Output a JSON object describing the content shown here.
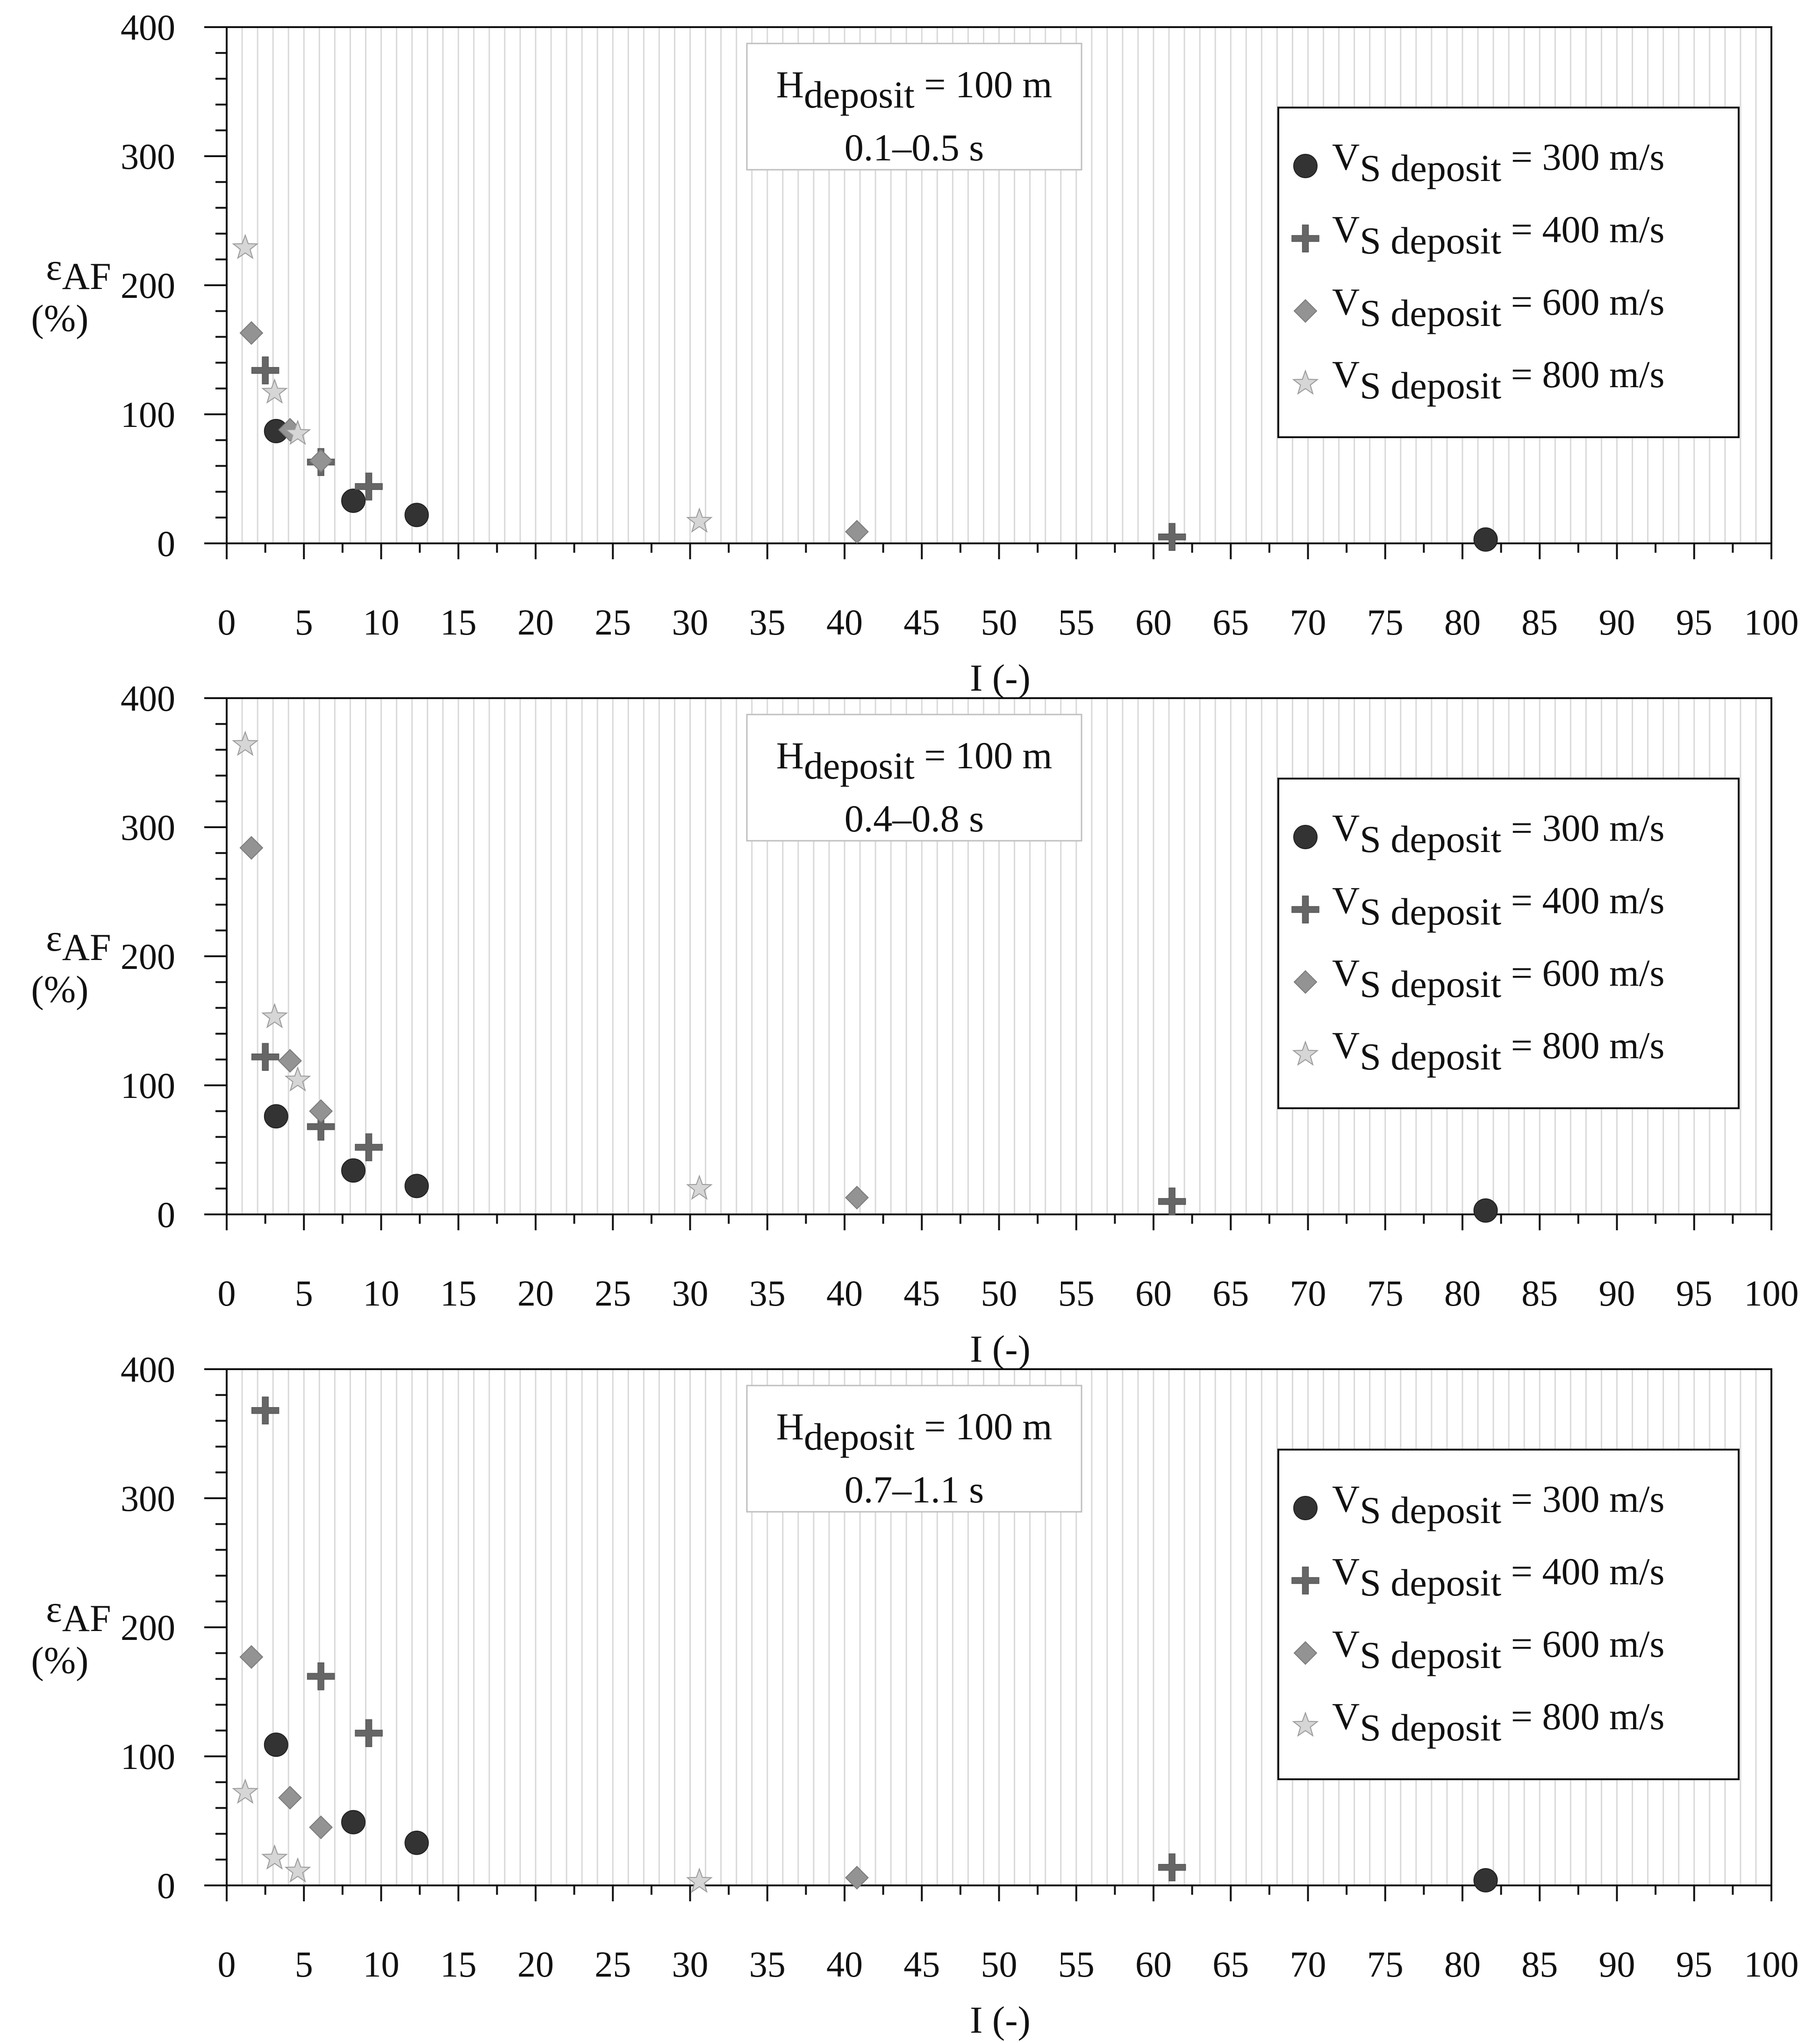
{
  "chart_data": [
    {
      "type": "scatter",
      "annotation": {
        "label_main": "H",
        "label_sub": "deposit",
        "label_value": " = 100 m",
        "period": "0.1–0.5 s"
      },
      "xlabel": "I (-)",
      "ylabel": {
        "symbol": "ε",
        "sub": "AF",
        "unit": "(%)"
      },
      "xlim": [
        0,
        100
      ],
      "ylim": [
        0,
        400
      ],
      "xticks": [
        "0",
        "5",
        "10",
        "15",
        "20",
        "25",
        "30",
        "35",
        "40",
        "45",
        "50",
        "55",
        "60",
        "65",
        "70",
        "75",
        "80",
        "85",
        "90",
        "95",
        "100"
      ],
      "yticks": [
        "0",
        "100",
        "200",
        "300",
        "400"
      ],
      "legend_position": "top-right",
      "series": [
        {
          "name_main": "V",
          "name_sub": "S deposit",
          "name_value": " = 300 m/s",
          "marker": "circle",
          "color": "#333333",
          "x": [
            3.2,
            8.2,
            12.3,
            81.5
          ],
          "y": [
            87,
            33,
            22,
            3
          ]
        },
        {
          "name_main": "V",
          "name_sub": "S deposit",
          "name_value": " = 400 m/s",
          "marker": "plus",
          "color": "#666666",
          "x": [
            2.5,
            6.1,
            9.2,
            61.2
          ],
          "y": [
            134,
            63,
            44,
            5
          ]
        },
        {
          "name_main": "V",
          "name_sub": "S deposit",
          "name_value": " = 600 m/s",
          "marker": "diamond",
          "color": "#939393",
          "x": [
            1.6,
            4.1,
            6.1,
            40.8
          ],
          "y": [
            163,
            88,
            64,
            9
          ]
        },
        {
          "name_main": "V",
          "name_sub": "S deposit",
          "name_value": " = 800 m/s",
          "marker": "star",
          "color": "#d6d6d6",
          "x": [
            1.2,
            3.1,
            4.6,
            30.6
          ],
          "y": [
            229,
            117,
            85,
            17
          ]
        }
      ]
    },
    {
      "type": "scatter",
      "annotation": {
        "label_main": "H",
        "label_sub": "deposit",
        "label_value": " = 100 m",
        "period": "0.4–0.8 s"
      },
      "xlabel": "I (-)",
      "ylabel": {
        "symbol": "ε",
        "sub": "AF",
        "unit": "(%)"
      },
      "xlim": [
        0,
        100
      ],
      "ylim": [
        0,
        400
      ],
      "xticks": [
        "0",
        "5",
        "10",
        "15",
        "20",
        "25",
        "30",
        "35",
        "40",
        "45",
        "50",
        "55",
        "60",
        "65",
        "70",
        "75",
        "80",
        "85",
        "90",
        "95",
        "100"
      ],
      "yticks": [
        "0",
        "100",
        "200",
        "300",
        "400"
      ],
      "legend_position": "top-right",
      "series": [
        {
          "name_main": "V",
          "name_sub": "S deposit",
          "name_value": " = 300 m/s",
          "marker": "circle",
          "color": "#333333",
          "x": [
            3.2,
            8.2,
            12.3,
            81.5
          ],
          "y": [
            76,
            34,
            22,
            3
          ]
        },
        {
          "name_main": "V",
          "name_sub": "S deposit",
          "name_value": " = 400 m/s",
          "marker": "plus",
          "color": "#666666",
          "x": [
            2.5,
            6.1,
            9.2,
            61.2
          ],
          "y": [
            122,
            68,
            52,
            10
          ]
        },
        {
          "name_main": "V",
          "name_sub": "S deposit",
          "name_value": " = 600 m/s",
          "marker": "diamond",
          "color": "#939393",
          "x": [
            1.6,
            4.1,
            6.1,
            40.8
          ],
          "y": [
            284,
            119,
            80,
            13
          ]
        },
        {
          "name_main": "V",
          "name_sub": "S deposit",
          "name_value": " = 800 m/s",
          "marker": "star",
          "color": "#d6d6d6",
          "x": [
            1.2,
            3.1,
            4.6,
            30.6
          ],
          "y": [
            364,
            153,
            104,
            20
          ]
        }
      ]
    },
    {
      "type": "scatter",
      "annotation": {
        "label_main": "H",
        "label_sub": "deposit",
        "label_value": " = 100 m",
        "period": "0.7–1.1 s"
      },
      "xlabel": "I (-)",
      "ylabel": {
        "symbol": "ε",
        "sub": "AF",
        "unit": "(%)"
      },
      "xlim": [
        0,
        100
      ],
      "ylim": [
        0,
        400
      ],
      "xticks": [
        "0",
        "5",
        "10",
        "15",
        "20",
        "25",
        "30",
        "35",
        "40",
        "45",
        "50",
        "55",
        "60",
        "65",
        "70",
        "75",
        "80",
        "85",
        "90",
        "95",
        "100"
      ],
      "yticks": [
        "0",
        "100",
        "200",
        "300",
        "400"
      ],
      "legend_position": "top-right",
      "series": [
        {
          "name_main": "V",
          "name_sub": "S deposit",
          "name_value": " = 300 m/s",
          "marker": "circle",
          "color": "#333333",
          "x": [
            3.2,
            8.2,
            12.3,
            81.5
          ],
          "y": [
            109,
            49,
            33,
            4
          ]
        },
        {
          "name_main": "V",
          "name_sub": "S deposit",
          "name_value": " = 400 m/s",
          "marker": "plus",
          "color": "#666666",
          "x": [
            2.5,
            6.1,
            9.2,
            61.2
          ],
          "y": [
            368,
            162,
            118,
            14
          ]
        },
        {
          "name_main": "V",
          "name_sub": "S deposit",
          "name_value": " = 600 m/s",
          "marker": "diamond",
          "color": "#939393",
          "x": [
            1.6,
            4.1,
            6.1,
            40.8
          ],
          "y": [
            177,
            68,
            45,
            6
          ]
        },
        {
          "name_main": "V",
          "name_sub": "S deposit",
          "name_value": " = 800 m/s",
          "marker": "star",
          "color": "#d6d6d6",
          "x": [
            1.2,
            3.1,
            4.6,
            30.6
          ],
          "y": [
            72,
            21,
            11,
            3
          ]
        }
      ]
    }
  ]
}
